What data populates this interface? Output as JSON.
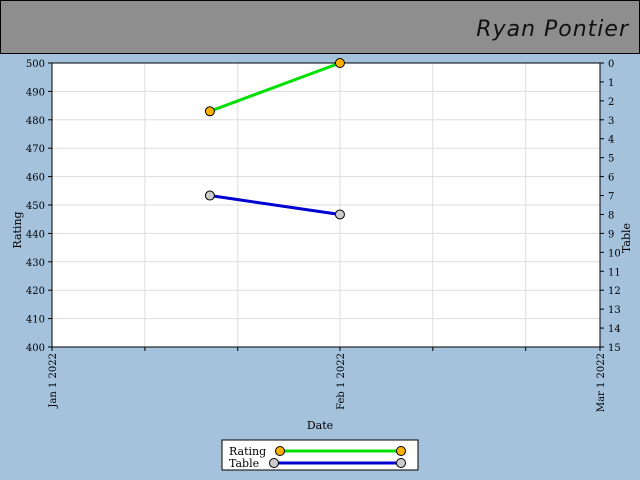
{
  "header": {
    "player_name": "Ryan Pontier"
  },
  "chart_data": {
    "type": "line",
    "xlabel": "Date",
    "ylabel": "Rating",
    "y2label": "Table",
    "x_range": [
      "2022-01-01",
      "2022-03-01"
    ],
    "x_ticks": [
      "Jan 1 2022",
      "Feb 1 2022",
      "Mar 1 2022"
    ],
    "ylim": [
      400,
      500
    ],
    "y_ticks": [
      400,
      410,
      420,
      430,
      440,
      450,
      460,
      470,
      480,
      490,
      500
    ],
    "y2lim": [
      15,
      0
    ],
    "y2_ticks": [
      0,
      1,
      2,
      3,
      4,
      5,
      6,
      7,
      8,
      9,
      10,
      11,
      12,
      13,
      14,
      15
    ],
    "grid": true,
    "legend_position": "bottom-center",
    "series": [
      {
        "name": "Rating",
        "axis": "left",
        "line_color": "#00e000",
        "marker_color": "#ffb000",
        "points": [
          {
            "x": "2022-01-18",
            "y": 483
          },
          {
            "x": "2022-02-01",
            "y": 500
          }
        ]
      },
      {
        "name": "Table",
        "axis": "right",
        "line_color": "#0000d0",
        "marker_color": "#cccccc",
        "points": [
          {
            "x": "2022-01-18",
            "y": 7
          },
          {
            "x": "2022-02-01",
            "y": 8
          }
        ]
      }
    ]
  }
}
